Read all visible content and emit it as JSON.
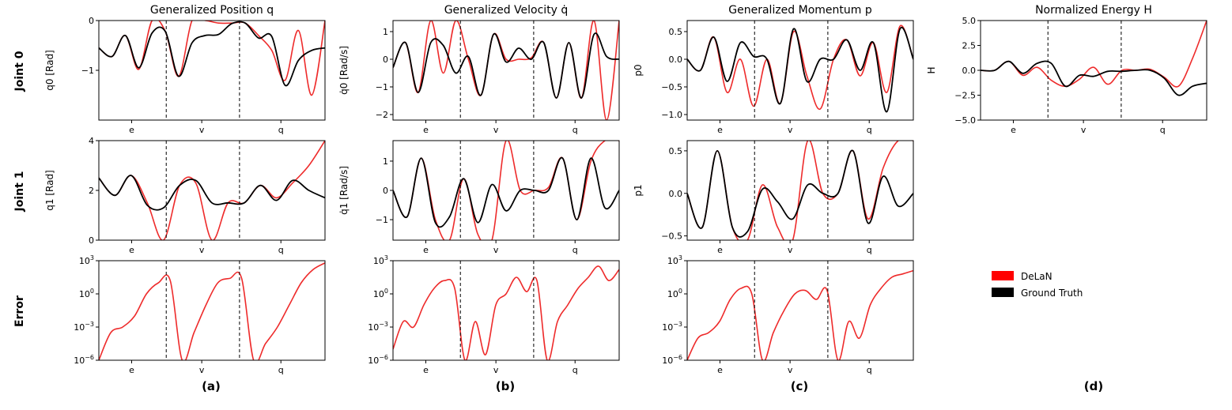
{
  "figure": {
    "row_labels": [
      "Joint 0",
      "Joint 1",
      "Error"
    ],
    "panel_labels": [
      "(a)",
      "(b)",
      "(c)",
      "(d)"
    ],
    "legend": [
      {
        "label": "DeLaN",
        "color": "#ff0000"
      },
      {
        "label": "Ground Truth",
        "color": "#000000"
      }
    ],
    "segment_labels": [
      "e",
      "v",
      "q"
    ],
    "colors": {
      "delan": "#ee2b2b",
      "ground_truth": "#000000",
      "divider": "#000000"
    }
  },
  "chart_data": [
    {
      "id": "pos0",
      "type": "line",
      "title": "Generalized Position q",
      "ylabel": "q0 [Rad]",
      "ylim": [
        -2,
        0
      ],
      "yticks": [
        "0",
        "-1"
      ],
      "series": [
        {
          "name": "Ground Truth",
          "values": [
            -0.55,
            -0.72,
            -0.3,
            -0.95,
            -0.25,
            -0.22,
            -1.12,
            -0.45,
            -0.3,
            -0.28,
            -0.06,
            -0.05,
            -0.35,
            -0.32,
            -1.3,
            -0.8,
            -0.6,
            -0.55
          ]
        },
        {
          "name": "DeLaN",
          "values": [
            -0.55,
            -0.72,
            -0.3,
            -0.98,
            0.3,
            -0.22,
            -1.12,
            0.0,
            0.3,
            -0.05,
            -0.05,
            -0.05,
            -0.3,
            -0.6,
            -1.2,
            -0.2,
            -1.5,
            0.3
          ]
        }
      ]
    },
    {
      "id": "vel0",
      "type": "line",
      "title": "Generalized Velocity q̇",
      "ylabel": "q̇0 [Rad/s]",
      "ylim": [
        -2.2,
        1.4
      ],
      "yticks": [
        "1",
        "0",
        "-1",
        "-2"
      ],
      "series": [
        {
          "name": "Ground Truth",
          "values": [
            -0.3,
            0.6,
            -1.2,
            0.6,
            0.5,
            -0.5,
            0.1,
            -1.3,
            0.9,
            -0.1,
            0.4,
            0.0,
            0.6,
            -1.4,
            0.6,
            -1.4,
            0.9,
            0.1,
            0.0
          ]
        },
        {
          "name": "DeLaN",
          "values": [
            -0.3,
            0.6,
            -1.2,
            1.4,
            -0.5,
            1.4,
            0.0,
            -1.3,
            0.9,
            0.0,
            0.0,
            0.05,
            0.6,
            -1.4,
            0.6,
            -1.4,
            1.4,
            -2.2,
            1.4
          ]
        }
      ]
    },
    {
      "id": "mom0",
      "type": "line",
      "title": "Generalized Momentum p",
      "ylabel": "p0",
      "ylim": [
        -1.1,
        0.7
      ],
      "yticks": [
        "0.5",
        "0.0",
        "-0.5",
        "-1.0"
      ],
      "series": [
        {
          "name": "Ground Truth",
          "values": [
            0.0,
            -0.2,
            0.4,
            -0.4,
            0.3,
            0.05,
            0.0,
            -0.8,
            0.55,
            -0.4,
            0.0,
            0.0,
            0.35,
            -0.2,
            0.3,
            -0.95,
            0.55,
            0.0
          ]
        },
        {
          "name": "DeLaN",
          "values": [
            0.0,
            -0.2,
            0.4,
            -0.6,
            0.0,
            -0.85,
            0.0,
            -0.8,
            0.5,
            -0.3,
            -0.9,
            0.0,
            0.35,
            -0.3,
            0.3,
            -0.6,
            0.6,
            0.0
          ]
        }
      ]
    },
    {
      "id": "energy",
      "type": "line",
      "title": "Normalized Energy H",
      "ylabel": "H",
      "ylim": [
        -5,
        5
      ],
      "yticks": [
        "5.0",
        "2.5",
        "0.0",
        "-2.5",
        "-5.0"
      ],
      "series": [
        {
          "name": "Ground Truth",
          "values": [
            0,
            0,
            0.9,
            -0.3,
            0.7,
            0.7,
            -1.6,
            -0.5,
            -0.6,
            -0.1,
            -0.1,
            0.0,
            0.0,
            -0.8,
            -2.5,
            -1.6,
            -1.3
          ]
        },
        {
          "name": "DeLaN",
          "values": [
            0,
            0,
            0.9,
            -0.5,
            0.3,
            -1.0,
            -1.6,
            -0.9,
            0.3,
            -1.4,
            0.0,
            0.0,
            0.1,
            -0.7,
            -1.6,
            1.2,
            5.0
          ]
        }
      ]
    },
    {
      "id": "pos1",
      "type": "line",
      "ylabel": "q1 [Rad]",
      "ylim": [
        0,
        4
      ],
      "yticks": [
        "4",
        "2",
        "0"
      ],
      "series": [
        {
          "name": "Ground Truth",
          "values": [
            2.5,
            1.8,
            2.6,
            1.4,
            1.3,
            2.2,
            2.4,
            1.5,
            1.5,
            1.5,
            2.2,
            1.6,
            2.4,
            2.0,
            1.7
          ]
        },
        {
          "name": "DeLaN",
          "values": [
            2.5,
            1.8,
            2.6,
            1.5,
            0.0,
            2.2,
            2.3,
            0.0,
            1.5,
            1.5,
            2.2,
            1.7,
            2.3,
            3.0,
            4.0
          ]
        }
      ]
    },
    {
      "id": "vel1",
      "type": "line",
      "ylabel": "q̇1 [Rad/s]",
      "ylim": [
        -1.7,
        1.7
      ],
      "yticks": [
        "1",
        "0",
        "-1"
      ],
      "series": [
        {
          "name": "Ground Truth",
          "values": [
            0.0,
            -0.9,
            1.1,
            -1.1,
            -0.9,
            0.4,
            -1.1,
            0.2,
            -0.7,
            0.0,
            0.0,
            0.0,
            1.1,
            -1.0,
            1.1,
            -0.6,
            0.0
          ]
        },
        {
          "name": "DeLaN",
          "values": [
            0.0,
            -0.9,
            1.1,
            -1.0,
            -1.7,
            0.4,
            -1.5,
            -1.7,
            1.7,
            0.0,
            0.0,
            0.1,
            1.1,
            -1.0,
            1.0,
            1.7,
            1.7
          ]
        }
      ]
    },
    {
      "id": "mom1",
      "type": "line",
      "ylabel": "p1",
      "ylim": [
        -0.55,
        0.62
      ],
      "yticks": [
        "0.5",
        "0.0",
        "-0.5"
      ],
      "series": [
        {
          "name": "Ground Truth",
          "values": [
            0.0,
            -0.4,
            0.5,
            -0.4,
            -0.45,
            0.05,
            -0.1,
            -0.3,
            0.1,
            0.0,
            0.0,
            0.5,
            -0.35,
            0.2,
            -0.15,
            0.0
          ]
        },
        {
          "name": "DeLaN",
          "values": [
            0.0,
            -0.4,
            0.5,
            -0.4,
            -0.55,
            0.1,
            -0.4,
            -0.55,
            0.62,
            0.0,
            0.0,
            0.5,
            -0.3,
            0.3,
            0.62,
            0.62
          ]
        }
      ]
    },
    {
      "id": "err0",
      "type": "line",
      "scale": "log",
      "ylim": [
        -6,
        3
      ],
      "yticks": [
        "10^3",
        "10^0",
        "10^-3",
        "10^-6"
      ],
      "series": [
        {
          "name": "DeLaN",
          "values": [
            -6,
            -3.5,
            -3,
            -2,
            0,
            1,
            1.2,
            -6,
            -3.5,
            -1,
            1,
            1.4,
            1.4,
            -6,
            -4.5,
            -3,
            -1,
            1,
            2.2,
            2.8
          ]
        }
      ]
    },
    {
      "id": "err1",
      "type": "line",
      "scale": "log",
      "ylim": [
        -6,
        3
      ],
      "yticks": [
        "10^3",
        "10^0",
        "10^-3",
        "10^-6"
      ],
      "series": [
        {
          "name": "DeLaN",
          "values": [
            -5,
            -2.5,
            -3,
            -1,
            0.5,
            1.2,
            0.5,
            -6,
            -2.5,
            -5.5,
            -1,
            0,
            1.5,
            0.2,
            1.2,
            -6,
            -2.5,
            -1,
            0.5,
            1.5,
            2.5,
            1.2,
            2.2
          ]
        }
      ]
    },
    {
      "id": "err2",
      "type": "line",
      "scale": "log",
      "ylim": [
        -6,
        3
      ],
      "yticks": [
        "10^3",
        "10^0",
        "10^-3",
        "10^-6"
      ],
      "series": [
        {
          "name": "DeLaN",
          "values": [
            -6,
            -4,
            -3.5,
            -2.5,
            -0.5,
            0.5,
            0,
            -6,
            -3.5,
            -1.5,
            0,
            0.3,
            -0.5,
            0.3,
            -6,
            -2.5,
            -4,
            -1,
            0.5,
            1.5,
            1.8,
            2.1
          ]
        }
      ]
    }
  ]
}
